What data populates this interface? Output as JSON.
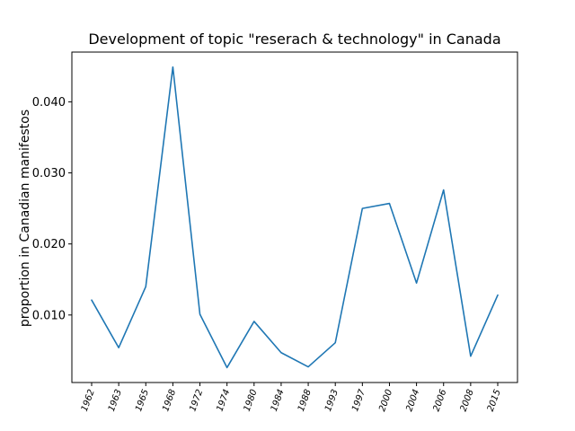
{
  "chart_data": {
    "type": "line",
    "title": "Development of topic \"reserach & technology\" in Canada",
    "xlabel": "",
    "ylabel": "proportion in Canadian manifestos",
    "categories": [
      "1962",
      "1963",
      "1965",
      "1968",
      "1972",
      "1974",
      "1980",
      "1984",
      "1988",
      "1993",
      "1997",
      "2000",
      "2004",
      "2006",
      "2008",
      "2015"
    ],
    "series": [
      {
        "values": [
          0.0121,
          0.0054,
          0.014,
          0.0449,
          0.0101,
          0.0026,
          0.0091,
          0.0047,
          0.0027,
          0.0061,
          0.025,
          0.0257,
          0.0145,
          0.0276,
          0.0042,
          0.0128
        ],
        "color": "#1f77b4"
      }
    ],
    "ylim": [
      0.0005,
      0.047
    ],
    "yticks": [
      {
        "value": 0.01,
        "label": "0.010"
      },
      {
        "value": 0.02,
        "label": "0.020"
      },
      {
        "value": 0.03,
        "label": "0.030"
      },
      {
        "value": 0.04,
        "label": "0.040"
      }
    ],
    "grid": false,
    "legend": "none",
    "xtick_rotation": "rotated"
  }
}
